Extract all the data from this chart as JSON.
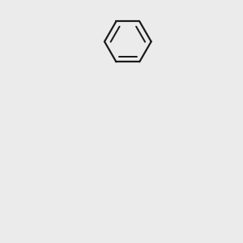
{
  "background_color": "#ebebeb",
  "bond_color": "#1a1a1a",
  "N_color": "#0000ff",
  "O_color": "#ff0000",
  "S_color": "#cccc00",
  "Cl_color": "#2d8c2d",
  "line_width": 1.6,
  "dbo": 0.012,
  "figsize": [
    3.0,
    3.0
  ],
  "dpi": 100,
  "xlim": [
    0.15,
    0.85
  ],
  "ylim": [
    0.03,
    0.97
  ]
}
